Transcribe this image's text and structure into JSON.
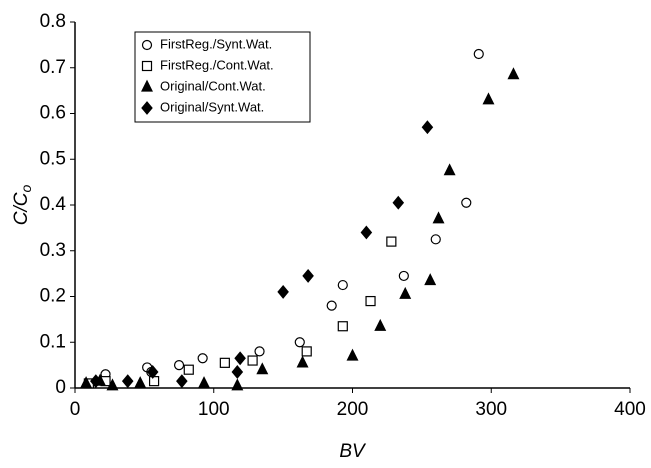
{
  "chart_data": {
    "type": "scatter",
    "x_label": "BV",
    "y_label": {
      "main": "C/C",
      "sub": "o"
    },
    "xlim": [
      0,
      400
    ],
    "xticks": [
      0,
      100,
      200,
      300,
      400
    ],
    "ylim": [
      0,
      0.8
    ],
    "yticks": [
      0,
      0.1,
      0.2,
      0.3,
      0.4,
      0.5,
      0.6,
      0.7,
      0.8
    ],
    "legend": "upper left",
    "series": [
      {
        "name": "FirstReg./Synt.Wat.",
        "marker": "circle",
        "filled": false,
        "color": "#000000",
        "x": [
          22,
          52,
          55,
          75,
          92,
          133,
          162,
          185,
          193,
          237,
          260,
          282,
          291
        ],
        "values": [
          0.03,
          0.045,
          0.035,
          0.05,
          0.065,
          0.08,
          0.1,
          0.18,
          0.225,
          0.245,
          0.325,
          0.405,
          0.73
        ]
      },
      {
        "name": "FirstReg./Cont.Wat.",
        "marker": "square",
        "filled": false,
        "color": "#000000",
        "x": [
          10,
          22,
          57,
          82,
          108,
          128,
          167,
          193,
          213,
          228
        ],
        "values": [
          0.01,
          0.015,
          0.015,
          0.04,
          0.055,
          0.06,
          0.08,
          0.135,
          0.19,
          0.32
        ]
      },
      {
        "name": "Original/Cont.Wat.",
        "marker": "triangle",
        "filled": true,
        "color": "#000000",
        "x": [
          8,
          18,
          27,
          47,
          93,
          117,
          135,
          164,
          200,
          220,
          238,
          256,
          262,
          270,
          298,
          316
        ],
        "values": [
          0.01,
          0.015,
          0.005,
          0.01,
          0.01,
          0.005,
          0.04,
          0.055,
          0.07,
          0.135,
          0.205,
          0.235,
          0.37,
          0.475,
          0.63,
          0.685
        ]
      },
      {
        "name": "Original/Synt.Wat.",
        "marker": "diamond",
        "filled": true,
        "color": "#000000",
        "x": [
          15,
          38,
          56,
          77,
          117,
          119,
          150,
          168,
          210,
          233,
          254
        ],
        "values": [
          0.015,
          0.015,
          0.035,
          0.015,
          0.035,
          0.065,
          0.21,
          0.245,
          0.34,
          0.405,
          0.57
        ]
      }
    ]
  }
}
